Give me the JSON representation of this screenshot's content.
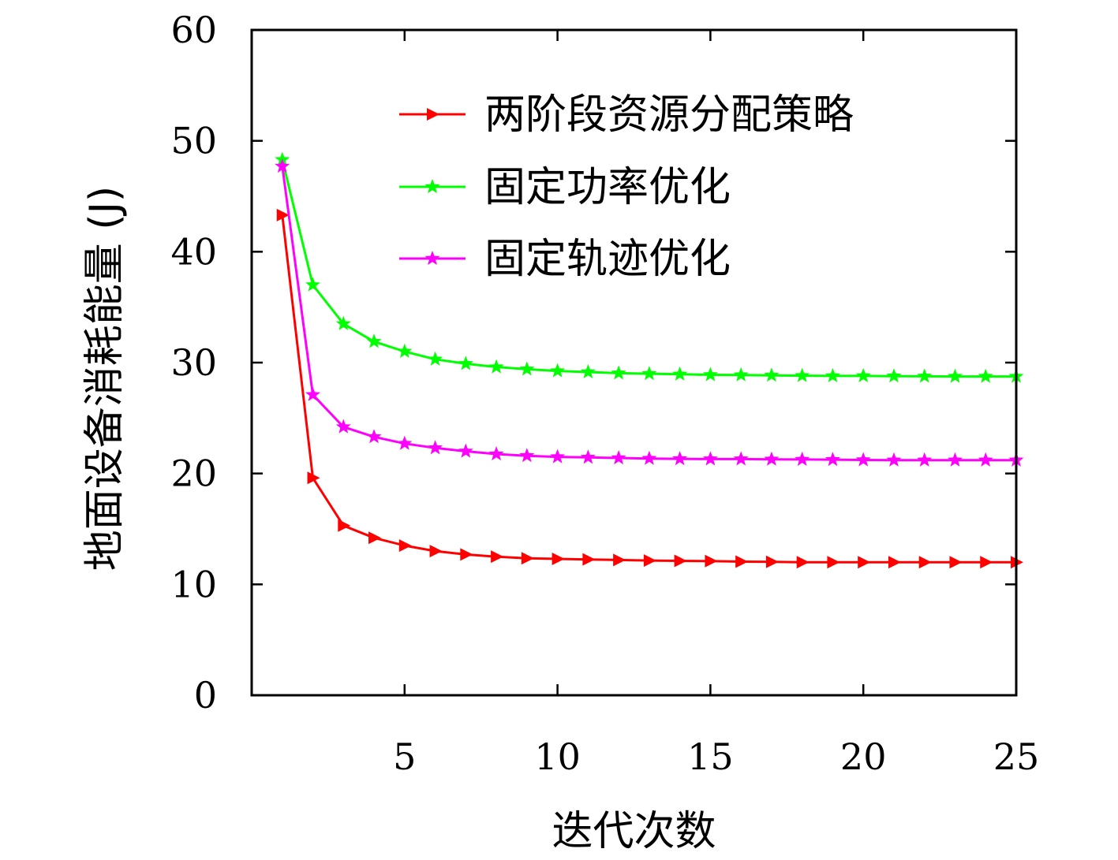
{
  "chart_data": {
    "type": "line",
    "title": "",
    "xlabel": "迭代次数",
    "ylabel": "地面设备消耗能量 (J)",
    "xlim": [
      0,
      25
    ],
    "ylim": [
      0,
      60
    ],
    "xticks": [
      5,
      10,
      15,
      20,
      25
    ],
    "yticks": [
      0,
      10,
      20,
      30,
      40,
      50,
      60
    ],
    "grid": false,
    "legend_position": "top-right",
    "x": [
      1,
      2,
      3,
      4,
      5,
      6,
      7,
      8,
      9,
      10,
      11,
      12,
      13,
      14,
      15,
      16,
      17,
      18,
      19,
      20,
      21,
      22,
      23,
      24,
      25
    ],
    "series": [
      {
        "name": "两阶段资源分配策略",
        "color": "#ff0000",
        "marker": "triangle-right",
        "values": [
          43.3,
          19.6,
          15.3,
          14.2,
          13.5,
          13.0,
          12.7,
          12.5,
          12.35,
          12.3,
          12.25,
          12.2,
          12.15,
          12.12,
          12.1,
          12.05,
          12.03,
          12.0,
          12.0,
          12.0,
          12.0,
          12.0,
          12.0,
          12.0,
          12.0
        ]
      },
      {
        "name": "固定功率优化",
        "color": "#00ff00",
        "marker": "star",
        "values": [
          48.3,
          37.0,
          33.5,
          31.9,
          31.0,
          30.3,
          29.9,
          29.6,
          29.4,
          29.25,
          29.15,
          29.05,
          29.0,
          28.95,
          28.9,
          28.88,
          28.85,
          28.82,
          28.8,
          28.8,
          28.78,
          28.76,
          28.75,
          28.75,
          28.75
        ]
      },
      {
        "name": "固定轨迹优化",
        "color": "#ff00ff",
        "marker": "star",
        "values": [
          47.7,
          27.1,
          24.2,
          23.3,
          22.7,
          22.3,
          22.0,
          21.75,
          21.6,
          21.5,
          21.45,
          21.4,
          21.35,
          21.32,
          21.3,
          21.3,
          21.28,
          21.26,
          21.25,
          21.22,
          21.2,
          21.2,
          21.2,
          21.2,
          21.2
        ]
      }
    ]
  }
}
